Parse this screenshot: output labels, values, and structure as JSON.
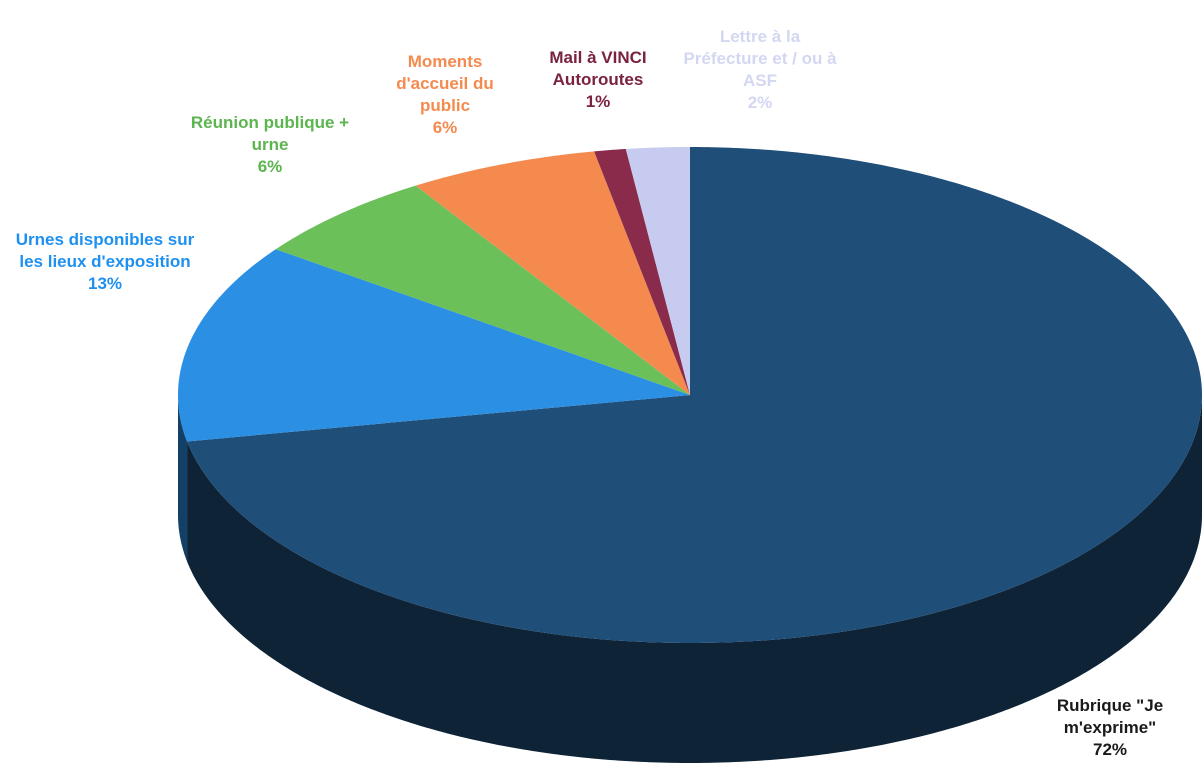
{
  "chart_data": {
    "type": "pie3d",
    "categories": [
      "Rubrique \"Je m'exprime\"",
      "Urnes disponibles sur les lieux d'exposition",
      "Réunion publique + urne",
      "Moments d'accueil du public",
      "Mail à VINCI Autoroutes",
      "Lettre à la Préfecture et / ou à ASF"
    ],
    "values": [
      72,
      13,
      6,
      6,
      1,
      2
    ],
    "value_labels": [
      "72%",
      "13%",
      "6%",
      "6%",
      "1%",
      "2%"
    ],
    "colors": [
      "#1f4e79",
      "#2b8fe3",
      "#6cc05a",
      "#f58a4e",
      "#8a2b4c",
      "#c6cbef"
    ],
    "label_colors": [
      "#1a1a1a",
      "#1e90f0",
      "#5cb54f",
      "#f58a4e",
      "#7a2242",
      "#d3d7f2"
    ]
  }
}
